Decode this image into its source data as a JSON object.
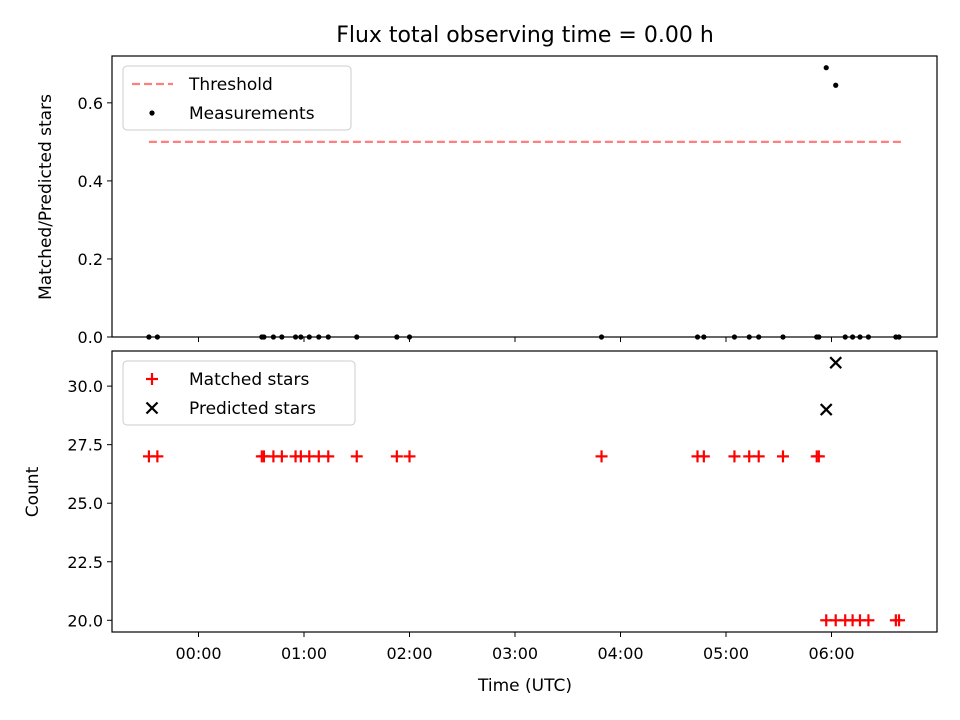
{
  "chart_data": [
    {
      "type": "scatter",
      "title": "Flux total observing time = 0.00 h",
      "xlabel": "",
      "ylabel": "Matched/Predicted stars",
      "xlim": [
        -0.82,
        7.0
      ],
      "ylim": [
        0.0,
        0.72
      ],
      "yticks": [
        0.0,
        0.2,
        0.4,
        0.6
      ],
      "ytick_labels": [
        "0.0",
        "0.2",
        "0.4",
        "0.6"
      ],
      "legend": {
        "position": "upper-left",
        "entries": [
          "Threshold",
          "Measurements"
        ]
      },
      "threshold": {
        "name": "Threshold",
        "y": 0.5,
        "x_range": [
          -0.47,
          6.66
        ],
        "color": "#ff7f7f"
      },
      "series": [
        {
          "name": "Measurements",
          "color": "#000000",
          "marker": "dot",
          "points": [
            [
              -0.47,
              0
            ],
            [
              -0.39,
              0
            ],
            [
              0.6,
              0
            ],
            [
              0.62,
              0
            ],
            [
              0.71,
              0
            ],
            [
              0.79,
              0
            ],
            [
              0.92,
              0
            ],
            [
              0.97,
              0
            ],
            [
              1.05,
              0
            ],
            [
              1.14,
              0
            ],
            [
              1.23,
              0
            ],
            [
              1.5,
              0
            ],
            [
              1.88,
              0
            ],
            [
              2.0,
              0
            ],
            [
              3.82,
              0
            ],
            [
              4.73,
              0
            ],
            [
              4.79,
              0
            ],
            [
              5.08,
              0
            ],
            [
              5.22,
              0
            ],
            [
              5.31,
              0
            ],
            [
              5.54,
              0
            ],
            [
              5.86,
              0
            ],
            [
              5.88,
              0
            ],
            [
              5.95,
              0.69
            ],
            [
              6.04,
              0.645
            ],
            [
              6.13,
              0
            ],
            [
              6.2,
              0
            ],
            [
              6.27,
              0
            ],
            [
              6.35,
              0
            ],
            [
              6.61,
              0
            ],
            [
              6.64,
              0
            ]
          ]
        }
      ]
    },
    {
      "type": "scatter",
      "title": "",
      "xlabel": "Time (UTC)",
      "ylabel": "Count",
      "xlim": [
        -0.82,
        7.0
      ],
      "ylim": [
        19.5,
        31.5
      ],
      "yticks": [
        20.0,
        22.5,
        25.0,
        27.5,
        30.0
      ],
      "ytick_labels": [
        "20.0",
        "22.5",
        "25.0",
        "27.5",
        "30.0"
      ],
      "xticks": [
        0,
        1,
        2,
        3,
        4,
        5,
        6
      ],
      "xtick_labels": [
        "00:00",
        "01:00",
        "02:00",
        "03:00",
        "04:00",
        "05:00",
        "06:00"
      ],
      "legend": {
        "position": "upper-left",
        "entries": [
          "Matched stars",
          "Predicted stars"
        ]
      },
      "series": [
        {
          "name": "Matched stars",
          "color": "#ff0000",
          "marker": "plus",
          "points": [
            [
              -0.47,
              27
            ],
            [
              -0.39,
              27
            ],
            [
              0.6,
              27
            ],
            [
              0.62,
              27
            ],
            [
              0.71,
              27
            ],
            [
              0.79,
              27
            ],
            [
              0.92,
              27
            ],
            [
              0.97,
              27
            ],
            [
              1.05,
              27
            ],
            [
              1.14,
              27
            ],
            [
              1.23,
              27
            ],
            [
              1.5,
              27
            ],
            [
              1.88,
              27
            ],
            [
              2.0,
              27
            ],
            [
              3.82,
              27
            ],
            [
              4.73,
              27
            ],
            [
              4.79,
              27
            ],
            [
              5.08,
              27
            ],
            [
              5.22,
              27
            ],
            [
              5.31,
              27
            ],
            [
              5.54,
              27
            ],
            [
              5.86,
              27
            ],
            [
              5.88,
              27
            ],
            [
              5.95,
              20
            ],
            [
              6.04,
              20
            ],
            [
              6.13,
              20
            ],
            [
              6.2,
              20
            ],
            [
              6.27,
              20
            ],
            [
              6.35,
              20
            ],
            [
              6.61,
              20
            ],
            [
              6.64,
              20
            ]
          ]
        },
        {
          "name": "Predicted stars",
          "color": "#000000",
          "marker": "x",
          "points": [
            [
              5.95,
              29
            ],
            [
              6.04,
              31
            ]
          ]
        }
      ]
    }
  ]
}
